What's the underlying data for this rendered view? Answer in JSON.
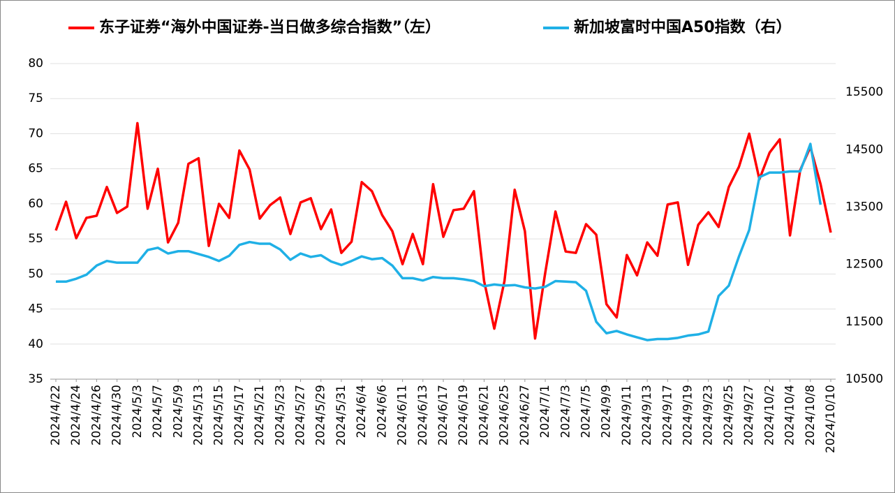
{
  "chart_data": {
    "type": "line",
    "categories": [
      "2024/4/22",
      null,
      "2024/4/24",
      null,
      "2024/4/26",
      null,
      "2024/4/30",
      null,
      "2024/5/3",
      null,
      "2024/5/7",
      null,
      "2024/5/9",
      null,
      "2024/5/13",
      null,
      "2024/5/15",
      null,
      "2024/5/17",
      null,
      "2024/5/21",
      null,
      "2024/5/23",
      null,
      "2024/5/27",
      null,
      "2024/5/29",
      null,
      "2024/5/31",
      null,
      "2024/6/4",
      null,
      "2024/6/6",
      null,
      "2024/6/11",
      null,
      "2024/6/13",
      null,
      "2024/6/17",
      null,
      "2024/6/19",
      null,
      "2024/6/21",
      null,
      "2024/6/25",
      null,
      "2024/6/27",
      null,
      "2024/7/1",
      null,
      "2024/7/3",
      null,
      "2024/7/5",
      null,
      "2024/9/9",
      null,
      "2024/9/11",
      null,
      "2024/9/13",
      null,
      "2024/9/17",
      null,
      "2024/9/19",
      null,
      "2024/9/23",
      null,
      "2024/9/25",
      null,
      "2024/9/27",
      null,
      "2024/10/2",
      null,
      "2024/10/4",
      null,
      "2024/10/8",
      null,
      "2024/10/10"
    ],
    "series": [
      {
        "name": "东子证券“海外中国证券-当日做多综合指数”（左）",
        "color": "#ff0000",
        "axis": "y",
        "values": [
          56.2,
          60.3,
          55.1,
          58.0,
          58.3,
          62.4,
          58.7,
          59.6,
          71.5,
          59.3,
          65.0,
          54.5,
          57.3,
          65.7,
          66.5,
          54.0,
          60.0,
          58.0,
          67.6,
          64.9,
          57.9,
          59.8,
          60.9,
          55.7,
          60.2,
          60.8,
          56.4,
          59.2,
          53.0,
          54.6,
          63.1,
          61.8,
          58.4,
          56.1,
          51.4,
          55.7,
          51.4,
          62.8,
          55.3,
          59.1,
          59.3,
          61.8,
          49.0,
          42.2,
          49.0,
          62.0,
          56.1,
          40.8,
          50.2,
          58.9,
          53.2,
          53.0,
          57.1,
          55.6,
          45.7,
          43.8,
          52.7,
          49.8,
          54.5,
          52.6,
          59.9,
          60.2,
          51.3,
          57.0,
          58.8,
          56.7,
          62.4,
          65.3,
          70.0,
          63.5,
          67.3,
          69.2,
          55.5,
          64.8,
          68.1,
          62.8,
          55.9
        ]
      },
      {
        "name": "新加坡富时中国A50指数（右）",
        "color": "#1fb0e6",
        "axis": "y2",
        "values": [
          12200,
          12200,
          12250,
          12320,
          12480,
          12560,
          12530,
          12530,
          12530,
          12750,
          12790,
          12690,
          12730,
          12730,
          12680,
          12630,
          12560,
          12650,
          12840,
          12890,
          12860,
          12860,
          12760,
          12580,
          12690,
          12630,
          12660,
          12550,
          12490,
          12560,
          12640,
          12590,
          12610,
          12480,
          12260,
          12260,
          12220,
          12280,
          12260,
          12260,
          12240,
          12210,
          12120,
          12150,
          12130,
          12140,
          12100,
          12080,
          12110,
          12210,
          12200,
          12190,
          12040,
          11500,
          11300,
          11340,
          11280,
          11230,
          11180,
          11200,
          11200,
          11220,
          11260,
          11280,
          11330,
          11950,
          12130,
          12640,
          13100,
          14020,
          14100,
          14100,
          14120,
          14120,
          14600,
          13540,
          null
        ]
      }
    ],
    "ylim": [
      35,
      80
    ],
    "yticks": [
      35,
      40,
      45,
      50,
      55,
      60,
      65,
      70,
      75,
      80
    ],
    "y2lim": [
      10500,
      16000
    ],
    "y2ticks": [
      10500,
      11500,
      12500,
      13500,
      14500,
      15500
    ],
    "grid": true,
    "legend": "top"
  }
}
